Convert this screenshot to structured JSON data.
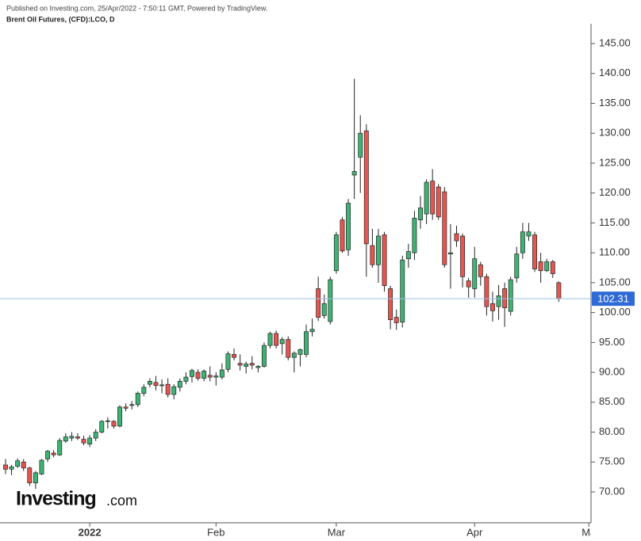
{
  "chart_data": {
    "type": "candlestick",
    "subtitle": "Published on Investing.com, 25/Apr/2022 - 7:50:11 GMT, Powered by TradingView.",
    "title": "Brent Oil Futures, (CFD):LCO, D",
    "logo": {
      "brand": "Investing",
      "suffix": ".com"
    },
    "up_color": "#3db474",
    "down_color": "#e8554f",
    "open": [
      74.5,
      73.8,
      74.3,
      75,
      74,
      71.5,
      73,
      75.5,
      76.5,
      76.2,
      78.5,
      79,
      79.2,
      78.8,
      78,
      79,
      80,
      81.8,
      81.8,
      81,
      84.2,
      84.5,
      84.6,
      86.5,
      88,
      88.3,
      87.8,
      88,
      86.3,
      87.5,
      88.5,
      89.3,
      90,
      89,
      89.5,
      89.2,
      89.2,
      90.5,
      93,
      91.5,
      91,
      91.5,
      90.8,
      91,
      94.5,
      96.5,
      94.8,
      95.5,
      92.5,
      93,
      93,
      96.8,
      104,
      99.5,
      98.5,
      107,
      115.5,
      110.5,
      123,
      126,
      130.4,
      111.2,
      108,
      113,
      104,
      99.2,
      98.4,
      109,
      110,
      115.5,
      116.5,
      122,
      121,
      120.2,
      109.8,
      113.2,
      112.8,
      105.3,
      104,
      108,
      106,
      101.5,
      101,
      104,
      100.2,
      105.8,
      110,
      112.8,
      113,
      108.5,
      107,
      108.5,
      105
    ],
    "high": [
      75.5,
      74.5,
      75.6,
      75.5,
      74.2,
      73.5,
      75.5,
      77,
      77,
      79,
      79.8,
      80,
      79.8,
      79.4,
      79.5,
      80.5,
      82,
      82.5,
      82,
      84.5,
      84.8,
      85.2,
      86.8,
      88,
      89,
      89.4,
      88.8,
      89,
      88,
      89,
      90,
      90.6,
      90.5,
      90.5,
      91,
      90,
      91.5,
      93.5,
      94,
      93,
      91.8,
      92.7,
      91.2,
      95,
      96.8,
      97,
      95.9,
      96,
      93.5,
      94,
      98,
      99,
      106,
      103,
      106,
      113.5,
      116,
      119,
      139.1,
      133,
      131.5,
      114,
      114,
      113.5,
      104.5,
      100.5,
      109.5,
      111.5,
      117,
      119.5,
      122.3,
      124,
      121.5,
      121,
      114.8,
      114.5,
      113.2,
      105.8,
      111,
      108.5,
      106.5,
      103.5,
      104.6,
      105,
      106,
      111,
      115,
      115,
      113.5,
      110,
      109,
      108.8,
      105.2
    ],
    "low": [
      73,
      72.8,
      74,
      73.5,
      71,
      70.5,
      72.8,
      75,
      75.8,
      76,
      78.2,
      78.5,
      78.7,
      77.8,
      77.5,
      78.5,
      79.8,
      80.6,
      80.6,
      80.8,
      83.5,
      83.8,
      84.2,
      86,
      87.5,
      87,
      86.5,
      85.8,
      85.5,
      86.8,
      88,
      88.3,
      88.6,
      88.5,
      88.5,
      87.8,
      88.8,
      90,
      92,
      90.3,
      89.8,
      90.5,
      90,
      90.8,
      94,
      94,
      93,
      92,
      90,
      91,
      92.5,
      96,
      98.6,
      99,
      98,
      106.5,
      110,
      109.5,
      119,
      120,
      106,
      107.5,
      105,
      103.5,
      97.2,
      97.1,
      97.5,
      107.5,
      108.8,
      114,
      114.8,
      115.5,
      115.5,
      107.5,
      104,
      111,
      104.2,
      102.5,
      102.5,
      104.5,
      99.5,
      98.5,
      98.8,
      97.6,
      99.5,
      105,
      109,
      112,
      106.8,
      105,
      106.8,
      105.8,
      101.8
    ],
    "close": [
      73.8,
      74.2,
      75.2,
      74,
      71.5,
      73.2,
      75.3,
      76.8,
      76.2,
      78.6,
      79.2,
      79.3,
      79,
      78.2,
      79,
      80,
      81.8,
      81.9,
      81,
      84.2,
      84,
      84.6,
      86.5,
      87.5,
      88.5,
      87.8,
      87.9,
      86.3,
      87.6,
      88.5,
      89.2,
      90.3,
      89,
      90.2,
      89.2,
      89.4,
      90.4,
      93.1,
      92.5,
      91.2,
      91.4,
      91.2,
      91,
      94.5,
      96.5,
      94.5,
      95.5,
      92.5,
      93.2,
      93.8,
      96.8,
      97.2,
      99.2,
      101.5,
      105.5,
      113,
      110.3,
      118.3,
      123.6,
      130,
      111.5,
      108,
      112.8,
      104.5,
      98.8,
      98.3,
      108.8,
      110.2,
      115.8,
      117.5,
      121.8,
      116.5,
      116,
      108,
      110,
      112,
      106,
      104.3,
      109,
      106,
      101,
      100.3,
      102.8,
      100.8,
      105.5,
      109.8,
      113.5,
      113.5,
      107.3,
      107,
      108.5,
      106.5,
      102.31
    ],
    "last_price": 102.31,
    "last_price_color": "#2f6ad6",
    "ylim": [
      65.5,
      149.5
    ],
    "yticks": [
      {
        "value": 70,
        "label": "70.00"
      },
      {
        "value": 75,
        "label": "75.00"
      },
      {
        "value": 80,
        "label": "80.00"
      },
      {
        "value": 85,
        "label": "85.00"
      },
      {
        "value": 90,
        "label": "90.00"
      },
      {
        "value": 95,
        "label": "95.00"
      },
      {
        "value": 100,
        "label": "100.00"
      },
      {
        "value": 105,
        "label": "105.00"
      },
      {
        "value": 110,
        "label": "110.00"
      },
      {
        "value": 115,
        "label": "115.00"
      },
      {
        "value": 120,
        "label": "120.00"
      },
      {
        "value": 125,
        "label": "125.00"
      },
      {
        "value": 130,
        "label": "130.00"
      },
      {
        "value": 135,
        "label": "135.00"
      },
      {
        "value": 140,
        "label": "140.00"
      },
      {
        "value": 145,
        "label": "145.00"
      }
    ],
    "xticks": [
      {
        "value": 14,
        "label": "2022"
      },
      {
        "value": 35,
        "label": "Feb"
      },
      {
        "value": 55,
        "label": "Mar"
      },
      {
        "value": 78,
        "label": "Apr"
      },
      {
        "value": 97,
        "label": "Ma"
      }
    ]
  }
}
